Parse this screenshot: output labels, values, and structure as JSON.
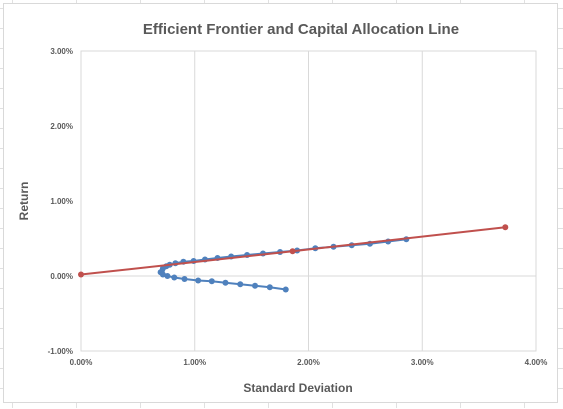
{
  "chart_data": {
    "type": "scatter",
    "title": "Efficient Frontier and Capital Allocation Line",
    "xlabel": "Standard Deviation",
    "ylabel": "Return",
    "xlim": [
      0.0,
      4.0
    ],
    "ylim": [
      -1.0,
      3.0
    ],
    "x_ticks": [
      "0.00%",
      "1.00%",
      "2.00%",
      "3.00%",
      "4.00%"
    ],
    "y_ticks": [
      "-1.00%",
      "0.00%",
      "1.00%",
      "2.00%",
      "3.00%"
    ],
    "x_tick_values": [
      0,
      1,
      2,
      3,
      4
    ],
    "y_tick_values": [
      -1,
      0,
      1,
      2,
      3
    ],
    "grid": "vertical",
    "legend": "none",
    "series": [
      {
        "color": "#4f81bd",
        "marker": "circle",
        "x": [
          0.71,
          0.72,
          0.75,
          0.78,
          0.83,
          0.9,
          0.99,
          1.09,
          1.2,
          1.32,
          1.46,
          1.6,
          1.75,
          1.9,
          2.06,
          2.22,
          2.38,
          2.54,
          2.7,
          2.86
        ],
        "y": [
          0.06,
          0.1,
          0.13,
          0.15,
          0.17,
          0.19,
          0.2,
          0.22,
          0.24,
          0.26,
          0.28,
          0.3,
          0.32,
          0.34,
          0.37,
          0.39,
          0.41,
          0.43,
          0.46,
          0.49
        ]
      },
      {
        "color": "#4f81bd",
        "marker": "circle",
        "x": [
          0.7,
          0.72,
          0.76,
          0.82,
          0.91,
          1.03,
          1.15,
          1.27,
          1.4,
          1.53,
          1.66,
          1.8
        ],
        "y": [
          0.05,
          0.02,
          0.0,
          -0.02,
          -0.04,
          -0.06,
          -0.07,
          -0.09,
          -0.11,
          -0.13,
          -0.15,
          -0.18
        ]
      },
      {
        "color": "#c0504d",
        "marker": "circle",
        "x": [
          0.0,
          1.86,
          3.73
        ],
        "y": [
          0.02,
          0.33,
          0.65
        ]
      }
    ]
  }
}
